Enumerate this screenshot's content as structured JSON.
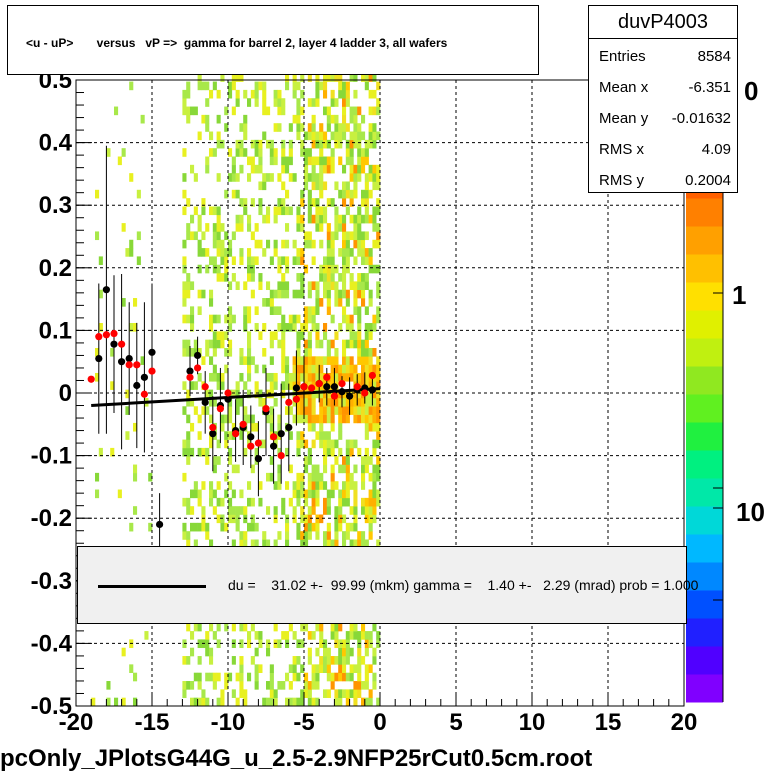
{
  "title": "<u - uP>       versus   vP =>  gamma for barrel 2, layer 4 ladder 3, all wafers",
  "stats": {
    "name": "duvP4003",
    "rows": [
      {
        "label": "Entries",
        "value": "8584"
      },
      {
        "label": "Mean x",
        "value": "-6.351"
      },
      {
        "label": "Mean y",
        "value": "-0.01632"
      },
      {
        "label": "RMS x",
        "value": "4.09"
      },
      {
        "label": "RMS y",
        "value": "0.2004"
      }
    ]
  },
  "legend_text": "du =    31.02 +-  99.99 (mkm) gamma =    1.40 +-   2.29 (mrad) prob = 1.000",
  "footer": "pcOnly_JPlotsG44G_u_2.5-2.9NFP25rCut0.5cm.root",
  "z_ticks": [
    "0",
    "1",
    "10"
  ],
  "colors": {
    "black_points": "#000000",
    "red_points": "#ff0000",
    "fit_line": "#000000"
  },
  "chart_data": {
    "type": "scatter",
    "xlim": [
      -20,
      20
    ],
    "ylim": [
      -0.5,
      0.5
    ],
    "x_ticks": [
      "-20",
      "-15",
      "-10",
      "-5",
      "0",
      "5",
      "10",
      "15",
      "20"
    ],
    "y_ticks": [
      "-0.5",
      "-0.4",
      "-0.3",
      "-0.2",
      "-0.1",
      "0",
      "0.1",
      "0.2",
      "0.3",
      "0.4",
      "0.5"
    ],
    "grid": true,
    "z_scale": "log",
    "fit_line": {
      "x": [
        -19,
        0
      ],
      "y": [
        -0.02,
        0.007
      ]
    },
    "series": [
      {
        "color": "black",
        "points": [
          {
            "x": -18.5,
            "y": 0.055,
            "e": 0.12
          },
          {
            "x": -18.0,
            "y": 0.165,
            "e": 0.23
          },
          {
            "x": -17.5,
            "y": 0.078,
            "e": 0.11
          },
          {
            "x": -17.0,
            "y": 0.05,
            "e": 0.14
          },
          {
            "x": -16.5,
            "y": 0.055,
            "e": 0.09
          },
          {
            "x": -16.0,
            "y": 0.012,
            "e": 0.1
          },
          {
            "x": -15.5,
            "y": 0.025,
            "e": 0.12
          },
          {
            "x": -15.0,
            "y": 0.065,
            "e": 0.11
          },
          {
            "x": -14.5,
            "y": -0.21,
            "e": 0.05
          },
          {
            "x": -12.5,
            "y": 0.035,
            "e": 0.04
          },
          {
            "x": -12.0,
            "y": 0.06,
            "e": 0.03
          },
          {
            "x": -11.5,
            "y": -0.015,
            "e": 0.05
          },
          {
            "x": -11.0,
            "y": -0.065,
            "e": 0.06
          },
          {
            "x": -10.5,
            "y": -0.02,
            "e": 0.06
          },
          {
            "x": -10.0,
            "y": -0.01,
            "e": 0.05
          },
          {
            "x": -9.5,
            "y": -0.06,
            "e": 0.05
          },
          {
            "x": -9.0,
            "y": -0.055,
            "e": 0.06
          },
          {
            "x": -8.5,
            "y": -0.07,
            "e": 0.05
          },
          {
            "x": -8.0,
            "y": -0.105,
            "e": 0.06
          },
          {
            "x": -7.5,
            "y": -0.03,
            "e": 0.07
          },
          {
            "x": -7.0,
            "y": -0.085,
            "e": 0.06
          },
          {
            "x": -6.5,
            "y": -0.065,
            "e": 0.08
          },
          {
            "x": -6.0,
            "y": -0.055,
            "e": 0.07
          },
          {
            "x": -5.5,
            "y": 0.008,
            "e": 0.06
          },
          {
            "x": -5.0,
            "y": 0.01,
            "e": 0.05
          },
          {
            "x": -4.0,
            "y": 0.015,
            "e": 0.03
          },
          {
            "x": -3.5,
            "y": 0.01,
            "e": 0.03
          },
          {
            "x": -3.0,
            "y": 0.01,
            "e": 0.03
          },
          {
            "x": -2.5,
            "y": 0.002,
            "e": 0.025
          },
          {
            "x": -2.0,
            "y": -0.005,
            "e": 0.03
          },
          {
            "x": -1.5,
            "y": 0.005,
            "e": 0.025
          },
          {
            "x": -1.0,
            "y": 0.008,
            "e": 0.025
          },
          {
            "x": -0.5,
            "y": 0.005,
            "e": 0.025
          }
        ]
      },
      {
        "color": "red",
        "points": [
          {
            "x": -19.0,
            "y": 0.022
          },
          {
            "x": -18.5,
            "y": 0.09
          },
          {
            "x": -18.0,
            "y": 0.093
          },
          {
            "x": -17.5,
            "y": 0.095
          },
          {
            "x": -17.0,
            "y": 0.078
          },
          {
            "x": -16.5,
            "y": 0.045
          },
          {
            "x": -16.0,
            "y": 0.045
          },
          {
            "x": -15.5,
            "y": -0.002
          },
          {
            "x": -15.0,
            "y": 0.035
          },
          {
            "x": -12.5,
            "y": 0.025
          },
          {
            "x": -12.0,
            "y": 0.04
          },
          {
            "x": -11.5,
            "y": 0.01
          },
          {
            "x": -11.0,
            "y": -0.055
          },
          {
            "x": -10.5,
            "y": -0.025
          },
          {
            "x": -10.0,
            "y": 0.0
          },
          {
            "x": -9.5,
            "y": -0.065
          },
          {
            "x": -9.0,
            "y": -0.05
          },
          {
            "x": -8.5,
            "y": -0.085
          },
          {
            "x": -8.0,
            "y": -0.08
          },
          {
            "x": -7.5,
            "y": -0.025
          },
          {
            "x": -7.0,
            "y": -0.07
          },
          {
            "x": -6.5,
            "y": -0.1
          },
          {
            "x": -6.0,
            "y": -0.015
          },
          {
            "x": -5.5,
            "y": -0.01
          },
          {
            "x": -5.0,
            "y": 0.01
          },
          {
            "x": -4.5,
            "y": 0.008
          },
          {
            "x": -4.0,
            "y": 0.015
          },
          {
            "x": -3.5,
            "y": 0.025
          },
          {
            "x": -3.0,
            "y": -0.005
          },
          {
            "x": -2.5,
            "y": 0.015
          },
          {
            "x": -1.5,
            "y": 0.01
          },
          {
            "x": -1.0,
            "y": 0.0
          },
          {
            "x": -0.5,
            "y": 0.028
          }
        ]
      }
    ]
  }
}
